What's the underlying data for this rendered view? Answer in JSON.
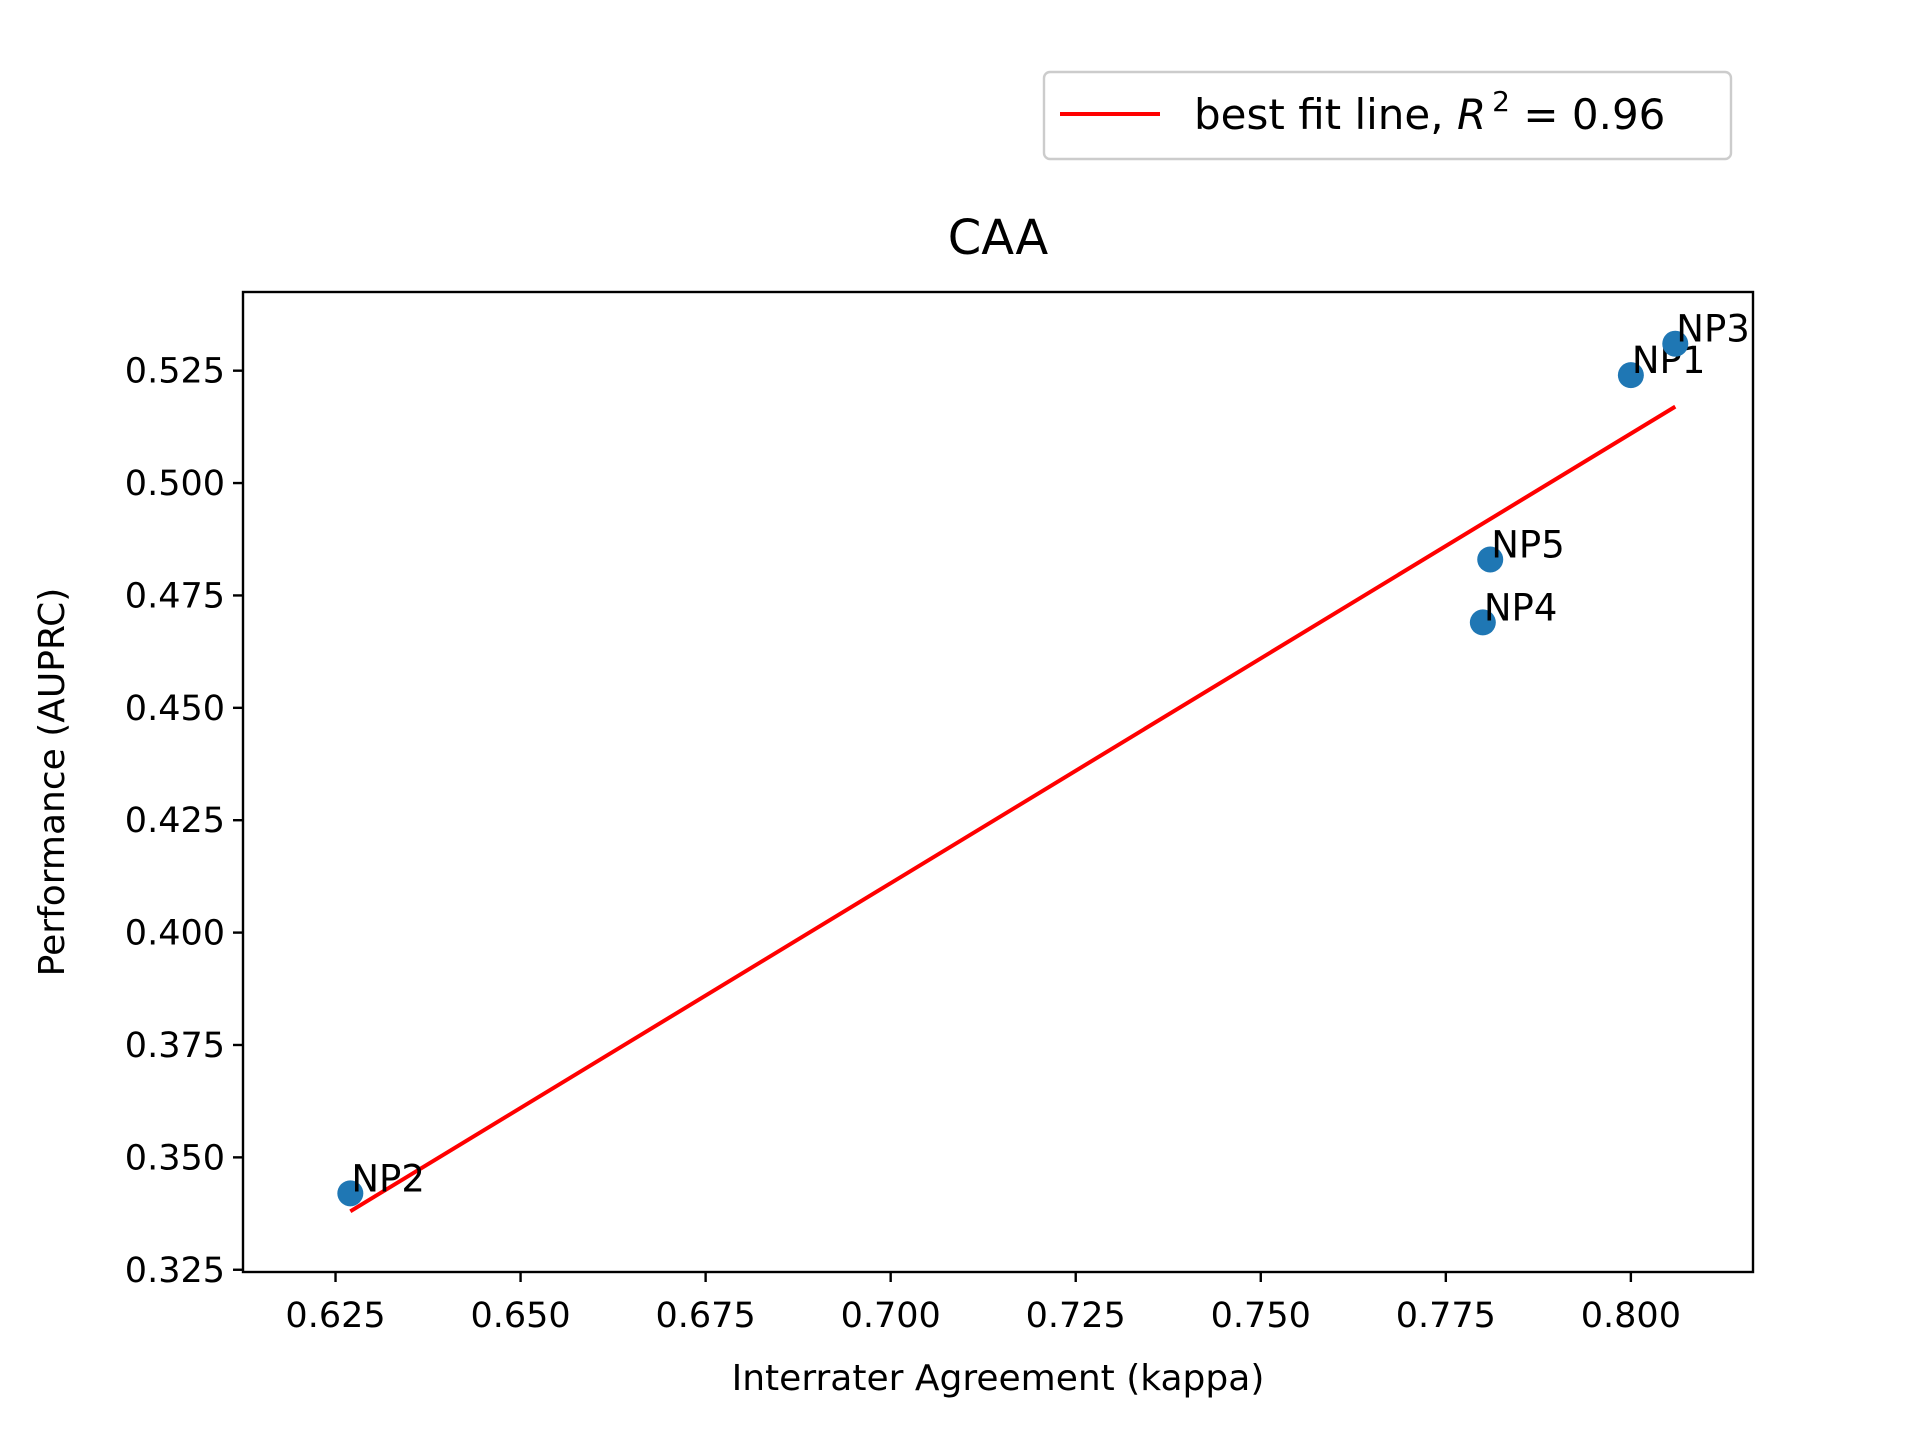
{
  "chart_data": {
    "type": "scatter",
    "title": "CAA",
    "xlabel": "Interrater Agreement (kappa)",
    "ylabel": "Performance (AUPRC)",
    "xlim": [
      0.6125,
      0.8165
    ],
    "ylim": [
      0.3245,
      0.5425
    ],
    "xticks": [
      0.625,
      0.65,
      0.675,
      0.7,
      0.725,
      0.75,
      0.775,
      0.8
    ],
    "xtick_labels": [
      "0.625",
      "0.650",
      "0.675",
      "0.700",
      "0.725",
      "0.750",
      "0.775",
      "0.800"
    ],
    "yticks": [
      0.325,
      0.35,
      0.375,
      0.4,
      0.425,
      0.45,
      0.475,
      0.5,
      0.525
    ],
    "ytick_labels": [
      "0.325",
      "0.350",
      "0.375",
      "0.400",
      "0.425",
      "0.450",
      "0.475",
      "0.500",
      "0.525"
    ],
    "grid": false,
    "points": [
      {
        "label": "NP1",
        "x": 0.8,
        "y": 0.524
      },
      {
        "label": "NP2",
        "x": 0.627,
        "y": 0.342
      },
      {
        "label": "NP3",
        "x": 0.806,
        "y": 0.531
      },
      {
        "label": "NP4",
        "x": 0.78,
        "y": 0.469
      },
      {
        "label": "NP5",
        "x": 0.781,
        "y": 0.483
      }
    ],
    "fit_line": {
      "x": [
        0.627,
        0.806
      ],
      "y": [
        0.338,
        0.517
      ]
    },
    "colors": {
      "points": "#1f77b4",
      "fit_line": "#ff0000"
    },
    "legend": {
      "placement": "upper-right, above plot",
      "label_prefix": "best fit line, ",
      "label_var": "R",
      "label_sup": "2",
      "label_suffix": " = 0.96"
    }
  }
}
